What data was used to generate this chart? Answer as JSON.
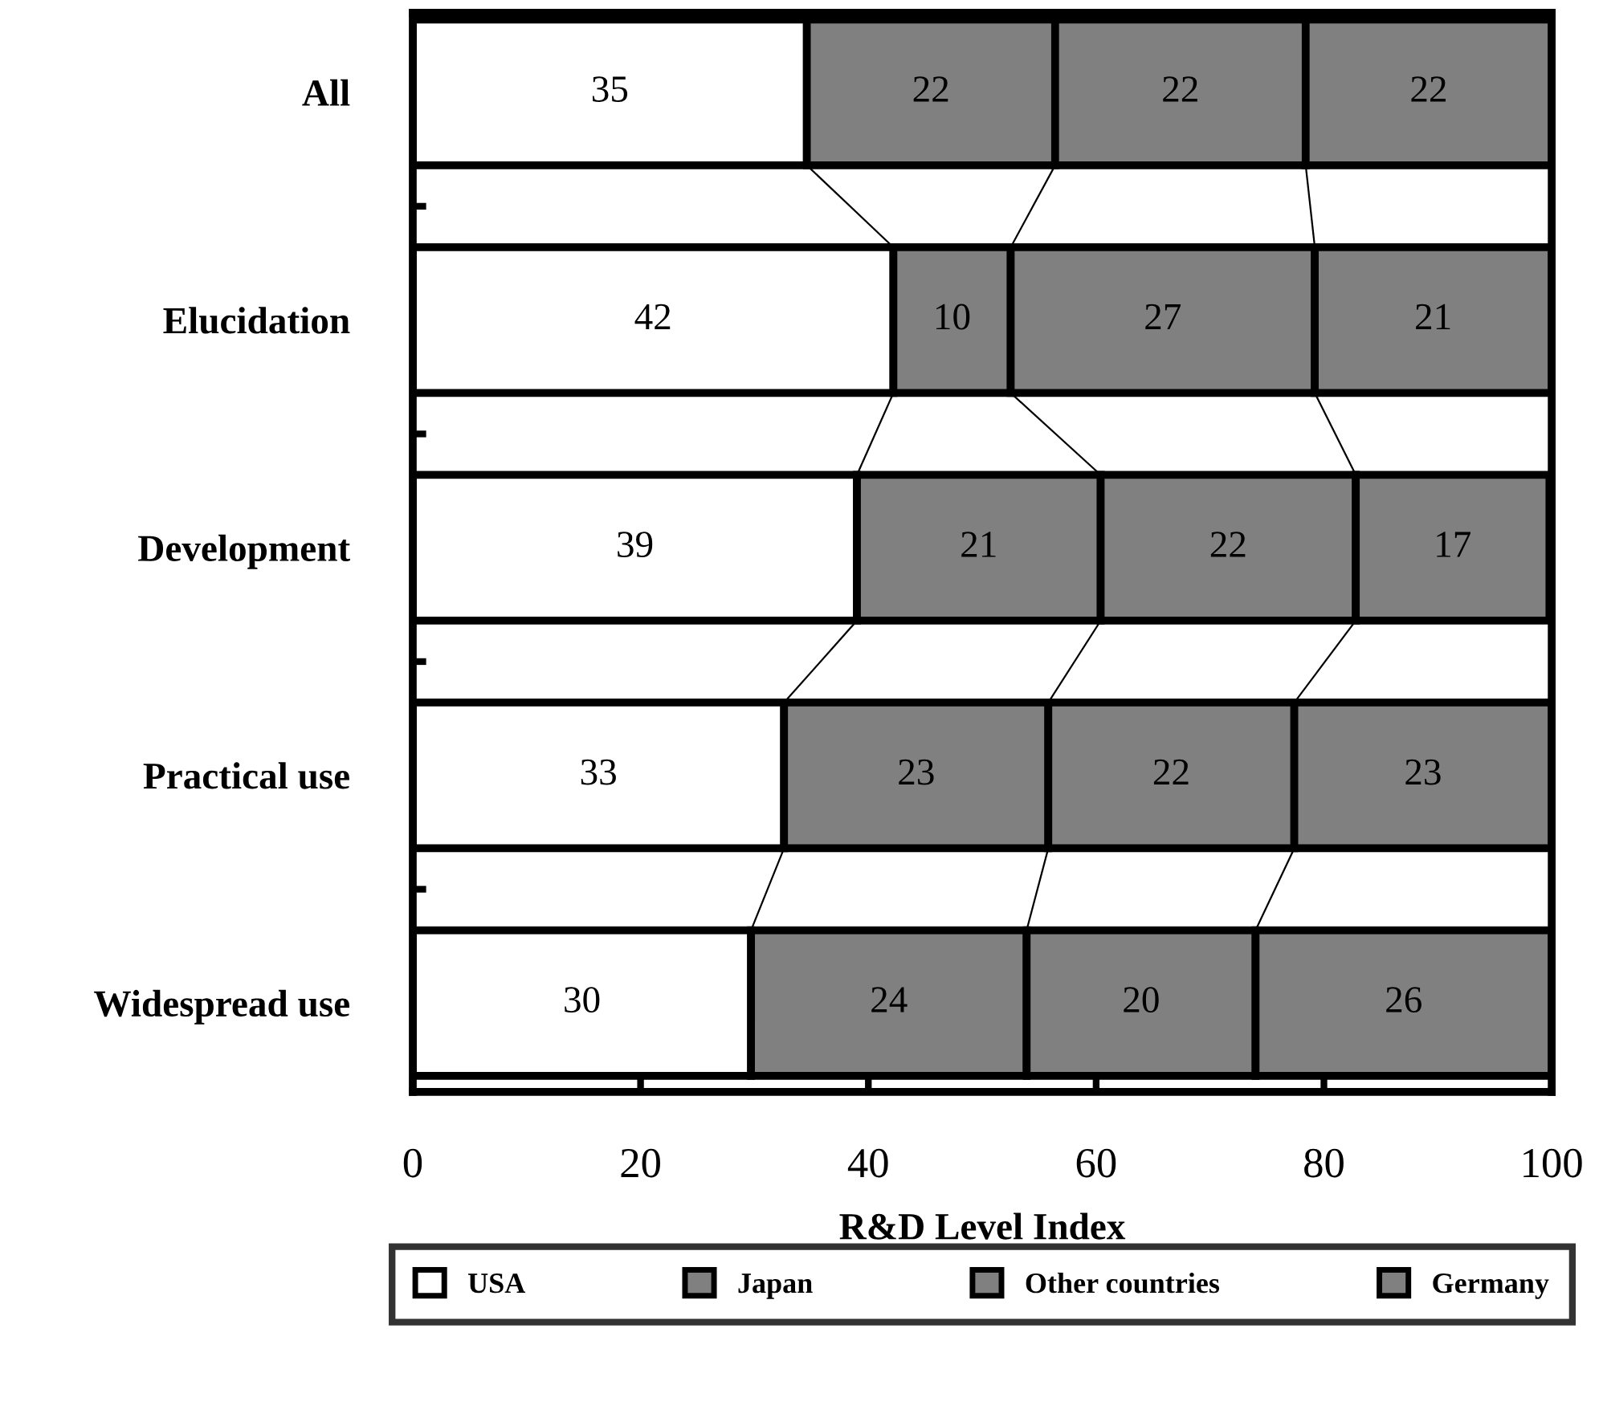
{
  "chart_data": {
    "type": "bar",
    "orientation": "horizontal",
    "stacked": true,
    "categories": [
      "All",
      "Elucidation",
      "Development",
      "Practical use",
      "Widespread use"
    ],
    "series": [
      {
        "name": "USA",
        "color": "#ffffff",
        "values": [
          34.6,
          42.2,
          39.0,
          32.6,
          29.7
        ],
        "value_labels": [
          "35",
          "42",
          "39",
          "33",
          "30"
        ]
      },
      {
        "name": "Japan",
        "color": "#808080",
        "values": [
          21.8,
          10.3,
          21.4,
          23.2,
          24.2
        ],
        "value_labels": [
          "22",
          "10",
          "21",
          "23",
          "24"
        ]
      },
      {
        "name": "Other countries",
        "color": "#808080",
        "values": [
          22.0,
          26.7,
          22.4,
          21.6,
          20.1
        ],
        "value_labels": [
          "22",
          "27",
          "22",
          "22",
          "20"
        ]
      },
      {
        "name": "Germany",
        "color": "#808080",
        "values": [
          21.6,
          20.8,
          17.0,
          22.6,
          26.0
        ],
        "value_labels": [
          "22",
          "21",
          "17",
          "23",
          "26"
        ]
      }
    ],
    "xlabel": "R&D Level Index",
    "xlim": [
      0,
      100
    ],
    "xticks": [
      0,
      20,
      40,
      60,
      80,
      100
    ],
    "grid": false,
    "legend": "bottom"
  }
}
